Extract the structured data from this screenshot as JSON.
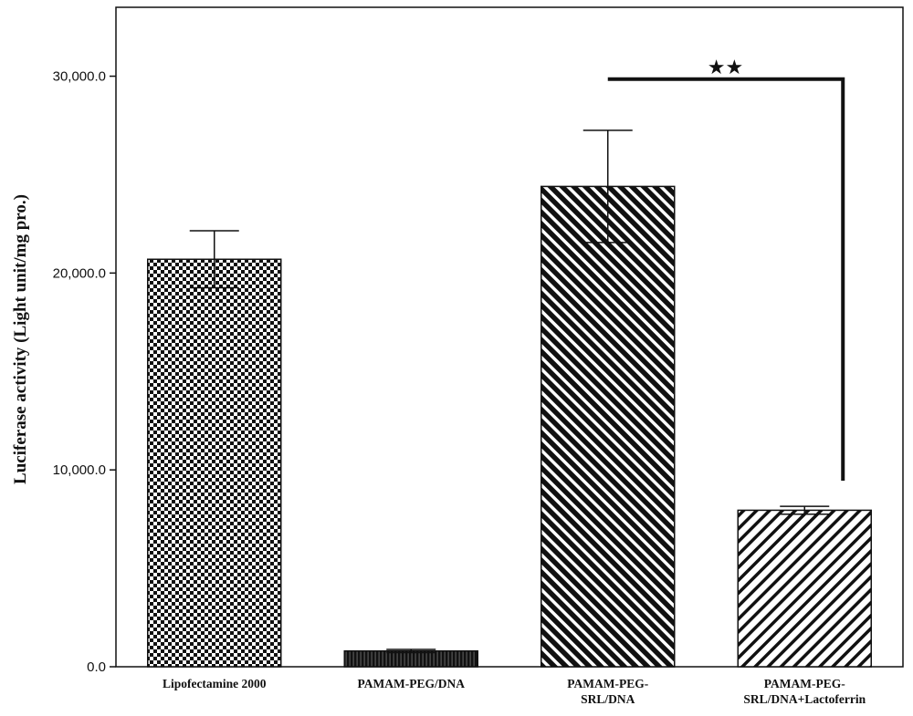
{
  "chart_data": {
    "type": "bar",
    "title": "",
    "xlabel": "",
    "ylabel": "Luciferase activity (Light unit/mg pro.)",
    "ylim": [
      0,
      33500
    ],
    "yticks": [
      0,
      10000,
      20000,
      30000
    ],
    "ytick_labels": [
      "0.0",
      "10,000.0",
      "20,000.0",
      "30,000.0"
    ],
    "categories": [
      [
        "Lipofectamine 2000"
      ],
      [
        "PAMAM-PEG/DNA"
      ],
      [
        "PAMAM-PEG-",
        "SRL/DNA"
      ],
      [
        "PAMAM-PEG-",
        "SRL/DNA+Lactoferrin"
      ]
    ],
    "values": [
      20700,
      800,
      24400,
      7950
    ],
    "errors": [
      1450,
      80,
      2850,
      200
    ],
    "patterns": [
      "checker",
      "dense-vertical",
      "diagonal-dense",
      "diagonal-sparse"
    ],
    "grid": false,
    "legend": "none",
    "annotation": {
      "text": "★★",
      "bracket_from_category": 2,
      "bracket_to_category": 3
    }
  }
}
